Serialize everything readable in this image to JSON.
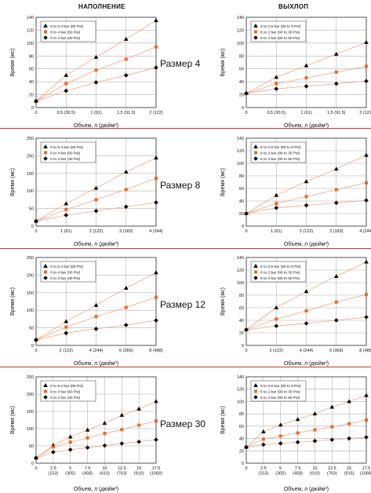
{
  "headers": {
    "fill": "НАПОЛНЕНИЕ",
    "exhaust": "ВЫХЛОП"
  },
  "rows": [
    {
      "label": "Размер 4"
    },
    {
      "label": "Размер 8"
    },
    {
      "label": "Размер 12"
    },
    {
      "label": "Размер 30"
    }
  ],
  "colors": {
    "line": "#f4a582",
    "series0": "#000000",
    "series1": "#f26522",
    "series2": "#000000",
    "grid": "#b0b0b0"
  },
  "chart_data": [
    {
      "type": "line",
      "xlabel": "Объем, л (дюйм³)",
      "ylabel": "Время (мс)",
      "xlim": [
        0,
        2
      ],
      "ylim": [
        0,
        140
      ],
      "yticks": [
        0,
        20,
        40,
        60,
        80,
        100,
        120,
        140
      ],
      "xticks": [
        0,
        0.5,
        1,
        1.5,
        2
      ],
      "xtick_labels": [
        [
          "0"
        ],
        [
          "0.5 (30.5)"
        ],
        [
          "1 (61)"
        ],
        [
          "1.5 (91.5)"
        ],
        [
          "2 (122)"
        ]
      ],
      "series": [
        {
          "name": "0 to 5.4 bar (80 Psi)",
          "marker": "triangle",
          "x": [
            0,
            0.5,
            1,
            1.5,
            2
          ],
          "y": [
            10,
            50,
            78,
            106,
            135
          ]
        },
        {
          "name": "0 to 4 bar   (60 Psi)",
          "marker": "square",
          "x": [
            0,
            0.5,
            1,
            1.5,
            2
          ],
          "y": [
            10,
            37,
            58,
            75,
            94
          ]
        },
        {
          "name": "0 to 2 bar   (30 Psi)",
          "marker": "diamond",
          "x": [
            0,
            0.5,
            1,
            1.5,
            2
          ],
          "y": [
            10,
            26,
            39,
            50,
            62
          ]
        }
      ]
    },
    {
      "type": "line",
      "xlabel": "Объем, л (дюйм³)",
      "ylabel": "Время (мс)",
      "xlim": [
        0,
        2
      ],
      "ylim": [
        0,
        140
      ],
      "yticks": [
        0,
        20,
        40,
        60,
        80,
        100,
        120,
        140
      ],
      "xticks": [
        0,
        0.5,
        1,
        1.5,
        2
      ],
      "xtick_labels": [
        [
          "0"
        ],
        [
          "0.5 (30.5)"
        ],
        [
          "1 (61)"
        ],
        [
          "1.5 (91.5)"
        ],
        [
          "2 (122)"
        ]
      ],
      "series": [
        {
          "name": "6 to 0.6 bar (90 to 9 Psi)",
          "marker": "triangle",
          "x": [
            0,
            0.5,
            1,
            1.5,
            2
          ],
          "y": [
            22,
            47,
            65,
            83,
            101
          ]
        },
        {
          "name": "6 to 2 bar   (90 to 30 Psi)",
          "marker": "square",
          "x": [
            0,
            0.5,
            1,
            1.5,
            2
          ],
          "y": [
            22,
            37,
            46,
            55,
            64
          ]
        },
        {
          "name": "6 to 4 bar   (90 to 60 Psi)",
          "marker": "diamond",
          "x": [
            0,
            0.5,
            1,
            1.5,
            2
          ],
          "y": [
            22,
            29,
            33,
            37,
            41
          ]
        }
      ]
    },
    {
      "type": "line",
      "xlabel": "Объем, л (дюйм³)",
      "ylabel": "Время (мс)",
      "xlim": [
        0,
        4
      ],
      "ylim": [
        0,
        250
      ],
      "yticks": [
        0,
        50,
        100,
        150,
        200,
        250
      ],
      "xticks": [
        0,
        1,
        2,
        3,
        4
      ],
      "xtick_labels": [
        [
          "0"
        ],
        [
          "1 (61)"
        ],
        [
          "2 (122)"
        ],
        [
          "3 (183)"
        ],
        [
          "4 (244)"
        ]
      ],
      "series": [
        {
          "name": "0 to 5.4 bar (80 Psi)",
          "marker": "triangle",
          "x": [
            0,
            1,
            2,
            3,
            4
          ],
          "y": [
            14,
            64,
            108,
            154,
            194
          ]
        },
        {
          "name": "0 to 4 bar   (60 Psi)",
          "marker": "square",
          "x": [
            0,
            1,
            2,
            3,
            4
          ],
          "y": [
            14,
            47,
            75,
            104,
            136
          ]
        },
        {
          "name": "0 to 2 bar   (30 Psi)",
          "marker": "diamond",
          "x": [
            0,
            1,
            2,
            3,
            4
          ],
          "y": [
            14,
            31,
            43,
            55,
            67
          ]
        }
      ]
    },
    {
      "type": "line",
      "xlabel": "Объем, л (дюйм³)",
      "ylabel": "Время (мс)",
      "xlim": [
        0,
        4
      ],
      "ylim": [
        0,
        140
      ],
      "yticks": [
        0,
        20,
        40,
        60,
        80,
        100,
        120,
        140
      ],
      "xticks": [
        0,
        1,
        2,
        3,
        4
      ],
      "xtick_labels": [
        [
          "0"
        ],
        [
          "1 (61)"
        ],
        [
          "2 (122)"
        ],
        [
          "3 (183)"
        ],
        [
          "4 (244)"
        ]
      ],
      "series": [
        {
          "name": "6 to 0.6 bar (90 to 9 Psi)",
          "marker": "triangle",
          "x": [
            0,
            1,
            2,
            3,
            4
          ],
          "y": [
            20,
            49,
            71,
            91,
            113
          ]
        },
        {
          "name": "6 to 2 bar   (90 to 30 Psi)",
          "marker": "square",
          "x": [
            0,
            1,
            2,
            3,
            4
          ],
          "y": [
            20,
            36,
            47,
            58,
            69
          ]
        },
        {
          "name": "6 to 4 bar   (90 to 60 Psi)",
          "marker": "diamond",
          "x": [
            0,
            1,
            2,
            3,
            4
          ],
          "y": [
            20,
            29,
            33,
            37,
            41
          ]
        }
      ]
    },
    {
      "type": "line",
      "xlabel": "Объем, л (дюйм³)",
      "ylabel": "Время (мс)",
      "xlim": [
        0,
        8
      ],
      "ylim": [
        0,
        250
      ],
      "yticks": [
        0,
        50,
        100,
        150,
        200,
        250
      ],
      "xticks": [
        0,
        2,
        4,
        6,
        8
      ],
      "xtick_labels": [
        [
          "0"
        ],
        [
          "2 (122)"
        ],
        [
          "4 (244)"
        ],
        [
          "6 (366)"
        ],
        [
          "8 (488)"
        ]
      ],
      "series": [
        {
          "name": "0 to 5.4 bar (80 Psi)",
          "marker": "triangle",
          "x": [
            0,
            2,
            4,
            6,
            8
          ],
          "y": [
            16,
            68,
            114,
            163,
            207
          ]
        },
        {
          "name": "0 to 4 bar   (60 Psi)",
          "marker": "square",
          "x": [
            0,
            2,
            4,
            6,
            8
          ],
          "y": [
            16,
            52,
            82,
            108,
            137
          ]
        },
        {
          "name": "0 to 2 bar   (30 Psi)",
          "marker": "diamond",
          "x": [
            0,
            2,
            4,
            6,
            8
          ],
          "y": [
            16,
            35,
            47,
            58,
            71
          ]
        }
      ]
    },
    {
      "type": "line",
      "xlabel": "Объем, л (дюйм³)",
      "ylabel": "Время (мс)",
      "xlim": [
        0,
        8
      ],
      "ylim": [
        0,
        140
      ],
      "yticks": [
        0,
        20,
        40,
        60,
        80,
        100,
        120,
        140
      ],
      "xticks": [
        0,
        2,
        4,
        6,
        8
      ],
      "xtick_labels": [
        [
          "0"
        ],
        [
          "2 (122)"
        ],
        [
          "4 (244)"
        ],
        [
          "6 (366)"
        ],
        [
          "8 (488)"
        ]
      ],
      "series": [
        {
          "name": "6 to 0.6 bar (90 to 9 Psi)",
          "marker": "triangle",
          "x": [
            0,
            2,
            4,
            6,
            8
          ],
          "y": [
            25,
            60,
            86,
            110,
            133
          ]
        },
        {
          "name": "6 to 2 bar   (90 to 30 Psi)",
          "marker": "square",
          "x": [
            0,
            2,
            4,
            6,
            8
          ],
          "y": [
            25,
            42,
            55,
            69,
            81
          ]
        },
        {
          "name": "6 to 4 bar   (90 to 60 Psi)",
          "marker": "diamond",
          "x": [
            0,
            2,
            4,
            6,
            8
          ],
          "y": [
            25,
            31,
            35,
            40,
            45
          ]
        }
      ]
    },
    {
      "type": "line",
      "xlabel": "Объем, л (дюйм³)",
      "ylabel": "Время (мс)",
      "xlim": [
        0,
        17.5
      ],
      "ylim": [
        0,
        250
      ],
      "yticks": [
        0,
        50,
        100,
        150,
        200,
        250
      ],
      "xticks": [
        0,
        2.5,
        5,
        7.5,
        10,
        12.5,
        15,
        17.5
      ],
      "xtick_labels": [
        [
          "0"
        ],
        [
          "2.5",
          "(153)"
        ],
        [
          "5",
          "(305)"
        ],
        [
          "7.5",
          "(458)"
        ],
        [
          "10",
          "(610)"
        ],
        [
          "12.5",
          "(763)"
        ],
        [
          "15",
          "(915)"
        ],
        [
          "17.5",
          "(1068)"
        ]
      ],
      "series": [
        {
          "name": "0 to 5.4 bar (80 Psi)",
          "marker": "triangle",
          "x": [
            0,
            2.5,
            5,
            7.5,
            10,
            12.5,
            15,
            17.5
          ],
          "y": [
            15,
            52,
            76,
            96,
            116,
            139,
            157,
            179
          ]
        },
        {
          "name": "0 to 4 bar   (60 Psi)",
          "marker": "square",
          "x": [
            0,
            2.5,
            5,
            7.5,
            10,
            12.5,
            15,
            17.5
          ],
          "y": [
            15,
            47,
            61,
            73,
            86,
            97,
            110,
            122
          ]
        },
        {
          "name": "0 to 2 bar   (30 Psi)",
          "marker": "diamond",
          "x": [
            0,
            2.5,
            5,
            7.5,
            10,
            12.5,
            15,
            17.5
          ],
          "y": [
            15,
            32,
            39,
            45,
            51,
            57,
            62,
            68
          ]
        }
      ]
    },
    {
      "type": "line",
      "xlabel": "Объем, л (дюйм³)",
      "ylabel": "Время (мс)",
      "xlim": [
        0,
        17.5
      ],
      "ylim": [
        0,
        140
      ],
      "yticks": [
        0,
        20,
        40,
        60,
        80,
        100,
        120,
        140
      ],
      "xticks": [
        0,
        2.5,
        5,
        7.5,
        10,
        12.5,
        15,
        17.5
      ],
      "xtick_labels": [
        [
          "0"
        ],
        [
          "2.5",
          "(153)"
        ],
        [
          "5",
          "(305)"
        ],
        [
          "7.5",
          "(458)"
        ],
        [
          "10",
          "(610)"
        ],
        [
          "12.5",
          "(763)"
        ],
        [
          "15",
          "(915)"
        ],
        [
          "17.5",
          "(1068)"
        ]
      ],
      "series": [
        {
          "name": "6 to 0.6 bar (90 to 9 Psi)",
          "marker": "triangle",
          "x": [
            0,
            2.5,
            5,
            7.5,
            10,
            12.5,
            15,
            17.5
          ],
          "y": [
            26,
            51,
            62,
            71,
            80,
            91,
            100,
            110
          ]
        },
        {
          "name": "6 to 2 bar   (90 to 30 Psi)",
          "marker": "square",
          "x": [
            0,
            2.5,
            5,
            7.5,
            10,
            12.5,
            15,
            17.5
          ],
          "y": [
            26,
            39,
            44,
            49,
            54,
            59,
            64,
            70
          ]
        },
        {
          "name": "6 to 4 bar   (90 to 60 Psi)",
          "marker": "diamond",
          "x": [
            0,
            2.5,
            5,
            7.5,
            10,
            12.5,
            15,
            17.5
          ],
          "y": [
            26,
            30,
            32,
            34,
            36,
            38,
            40,
            42
          ]
        }
      ]
    }
  ]
}
